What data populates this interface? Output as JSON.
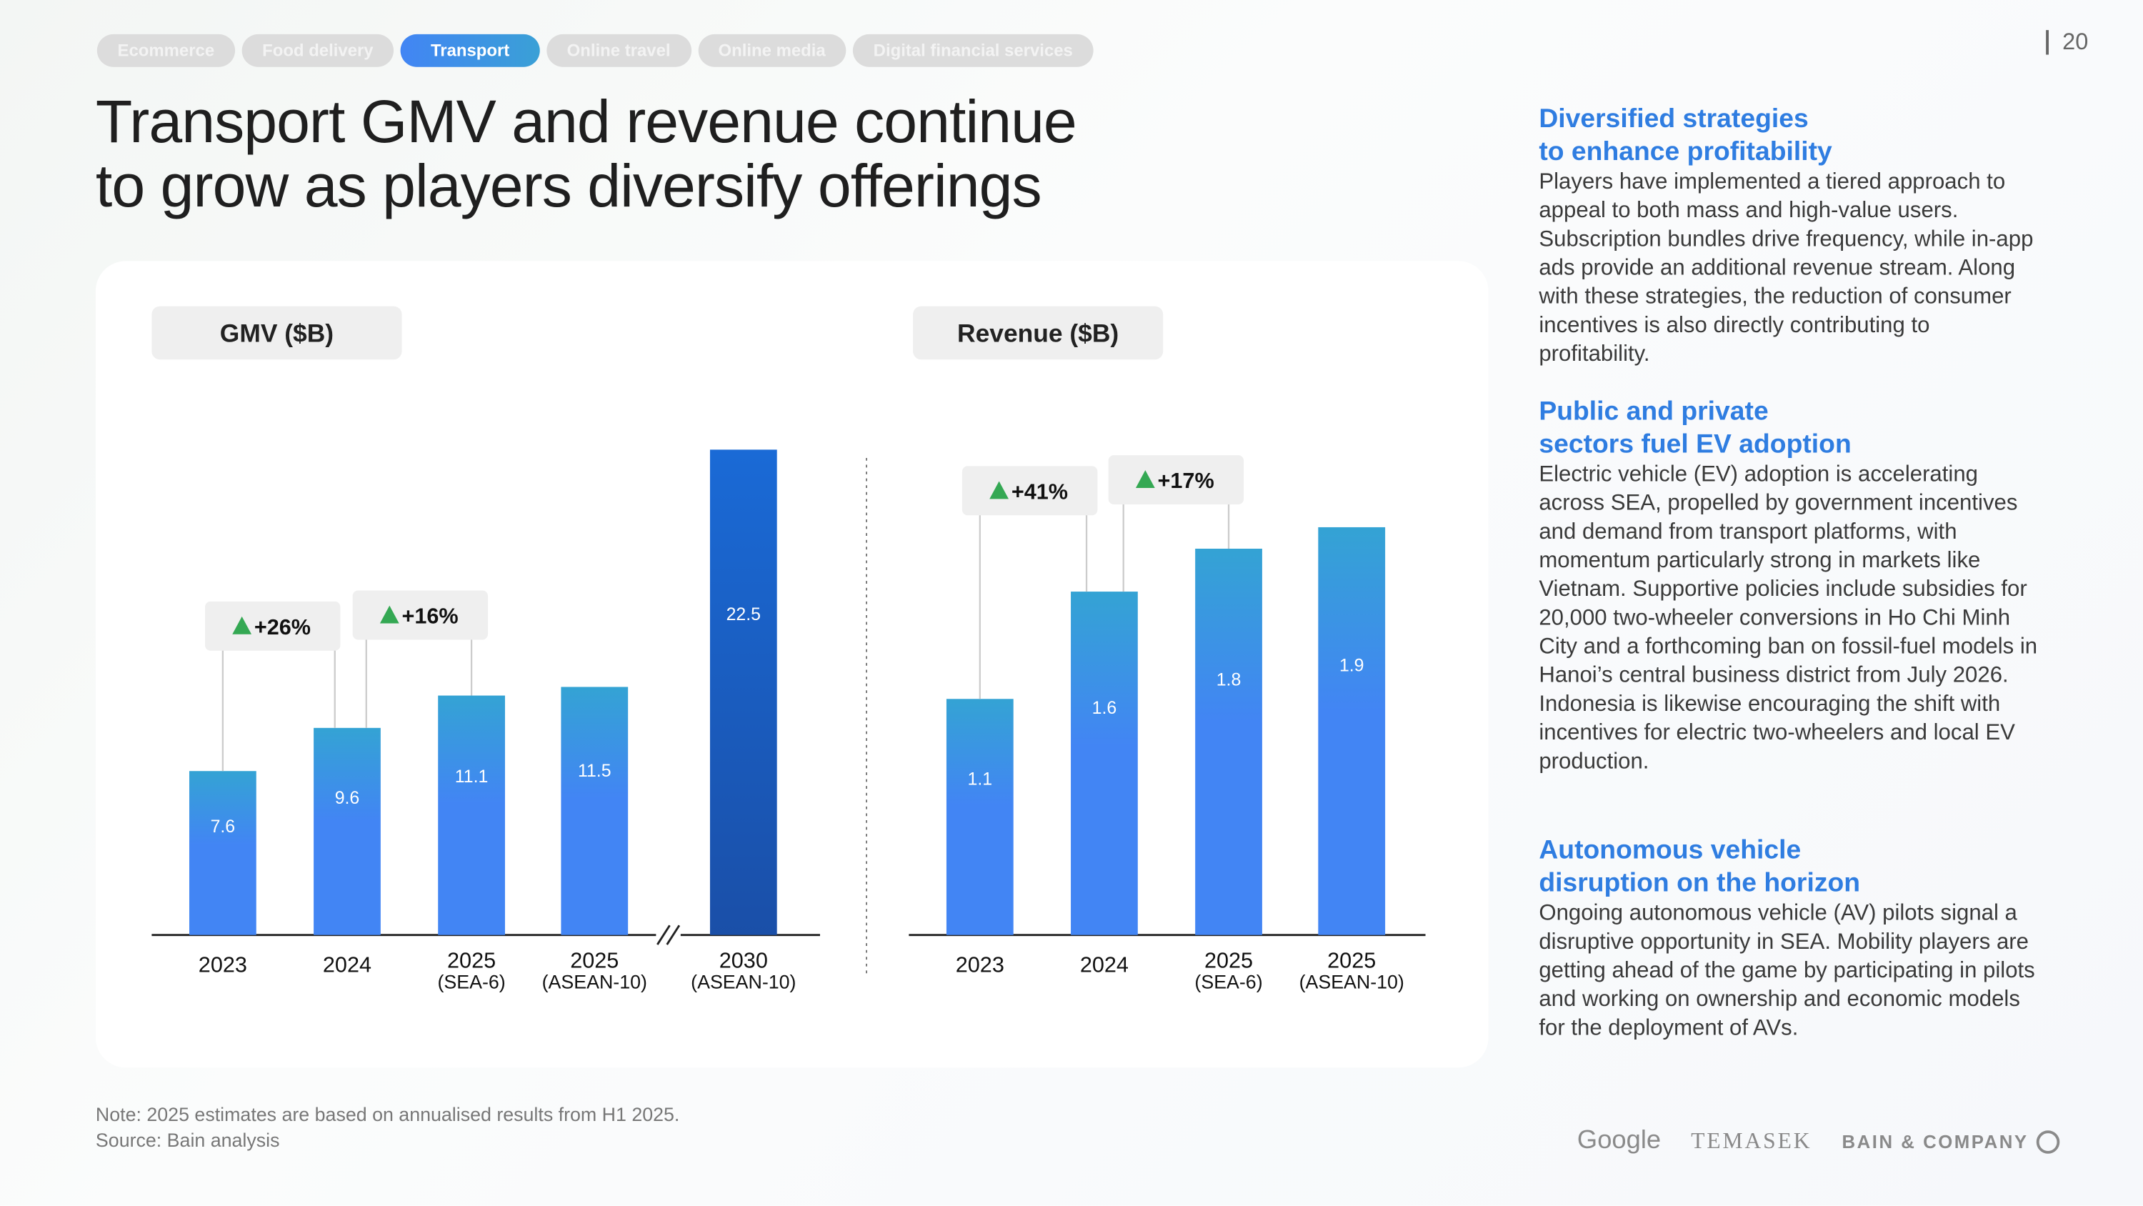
{
  "tabs": [
    "Ecommerce",
    "Food delivery",
    "Transport",
    "Online travel",
    "Online media",
    "Digital financial services"
  ],
  "active_tab": "Transport",
  "page_number": "20",
  "title_line1": "Transport GMV and revenue continue",
  "title_line2": "to grow as players diversify offerings",
  "chart_data": [
    {
      "type": "bar",
      "title": "GMV ($B)",
      "categories": [
        [
          "2023",
          ""
        ],
        [
          "2024",
          ""
        ],
        [
          "2025",
          "(SEA-6)"
        ],
        [
          "2025",
          "(ASEAN-10)"
        ],
        [
          "2030",
          "(ASEAN-10)"
        ]
      ],
      "values": [
        7.6,
        9.6,
        11.1,
        11.5,
        22.5
      ],
      "growth": [
        {
          "label": "+26%",
          "from": 0,
          "to": 1
        },
        {
          "label": "+16%",
          "from": 1,
          "to": 2
        }
      ],
      "axis_break": "before 2030",
      "ylim": [
        0,
        22.5
      ]
    },
    {
      "type": "bar",
      "title": "Revenue ($B)",
      "categories": [
        [
          "2023",
          ""
        ],
        [
          "2024",
          ""
        ],
        [
          "2025",
          "(SEA-6)"
        ],
        [
          "2025",
          "(ASEAN-10)"
        ]
      ],
      "values": [
        1.1,
        1.6,
        1.8,
        1.9
      ],
      "growth": [
        {
          "label": "+41%",
          "from": 0,
          "to": 1
        },
        {
          "label": "+17%",
          "from": 1,
          "to": 2
        }
      ],
      "ylim": [
        0,
        1.9
      ]
    }
  ],
  "sections": [
    {
      "heading1": "Diversified strategies",
      "heading2": "to enhance profitability",
      "body": "Players have implemented a tiered approach to appeal to both mass and high-value users. Subscription bundles drive frequency, while in-app ads provide an additional revenue stream. Along with these strategies, the reduction of consumer incentives is also directly contributing to profitability."
    },
    {
      "heading1": "Public and private",
      "heading2": "sectors fuel EV adoption",
      "body": "Electric vehicle (EV) adoption is accelerating across SEA, propelled by government incentives and demand from transport platforms, with momentum particularly strong in markets like Vietnam. Supportive policies include subsidies for 20,000 two-wheeler conversions in Ho Chi Minh City and a forthcoming ban on fossil-fuel models in Hanoi’s central business district from July 2026. Indonesia is likewise encouraging the shift with incentives for electric two-wheelers and local EV production."
    },
    {
      "heading1": "Autonomous vehicle",
      "heading2": "disruption on the horizon",
      "body": "Ongoing autonomous vehicle (AV) pilots signal a disruptive opportunity in SEA. Mobility players are getting ahead of the game by participating in pilots and working on ownership and economic models for the deployment of AVs."
    }
  ],
  "note": "Note: 2025 estimates are based on annualised results from H1 2025.",
  "source": "Source: Bain analysis",
  "logos": [
    "Google",
    "TEMASEK",
    "BAIN & COMPANY"
  ],
  "colors": {
    "bar_top": "#34a3d4",
    "bar_bottom": "#4285f4",
    "bar_2030_top": "#1a6ad6",
    "bar_2030_bottom": "#1a4fa8",
    "heading": "#2f7de1",
    "up": "#34a853"
  }
}
